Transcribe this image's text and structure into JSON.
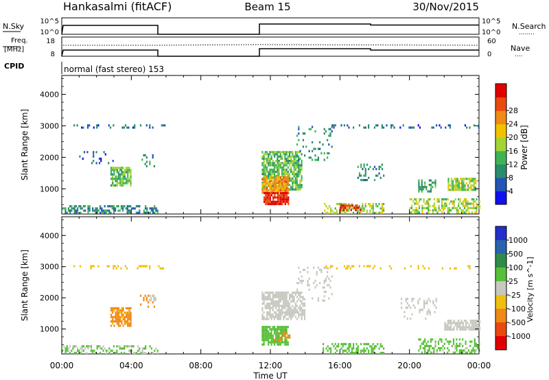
{
  "header": {
    "site": "Hankasalmi (fitACF)",
    "beam": "Beam 15",
    "date": "30/Nov/2015"
  },
  "panels": {
    "nsky": {
      "label": "N.Sky",
      "ticks_left": [
        "10^5",
        "10^0"
      ],
      "ticks_right": [
        "10^5",
        "10^0"
      ],
      "right_label": "N.Search",
      "right_marker": "........"
    },
    "freq": {
      "label_line1": "Freq.",
      "label_line2": "[MHz]",
      "ticks_left": [
        "18",
        "8"
      ],
      "ticks_right": [
        "60",
        "0"
      ],
      "right_label": "Nave",
      "right_marker": "...."
    },
    "cpid": {
      "label": "CPID",
      "value": "normal (fast stereo) 153"
    }
  },
  "chart_data": [
    {
      "type": "heatmap",
      "name": "power",
      "ylabel": "Slant Range [km]",
      "xlabel": "Time UT",
      "xlim": [
        0,
        24
      ],
      "ylim": [
        200,
        4600
      ],
      "yticks": [
        "1000",
        "2000",
        "3000",
        "4000"
      ],
      "xticks": [
        "00:00",
        "04:00",
        "08:00",
        "12:00",
        "16:00",
        "20:00",
        "00:00"
      ],
      "colorbar": {
        "label": "Power [dB]",
        "ticks": [
          "4",
          "8",
          "12",
          "16",
          "20",
          "24",
          "28"
        ],
        "colors": [
          "#1010ee",
          "#2255b5",
          "#2b8c6c",
          "#3fb455",
          "#a4d434",
          "#f2c200",
          "#f08a16",
          "#e84a10",
          "#e00000"
        ]
      },
      "regions": [
        {
          "t": [
            0.0,
            5.5
          ],
          "r": [
            250,
            480
          ],
          "value": 8,
          "density": 0.55
        },
        {
          "t": [
            2.8,
            4.0
          ],
          "r": [
            1100,
            1700
          ],
          "value": 12,
          "density": 0.8
        },
        {
          "t": [
            4.5,
            5.3
          ],
          "r": [
            1700,
            2100
          ],
          "value": 8,
          "density": 0.25
        },
        {
          "t": [
            1.0,
            3.0
          ],
          "r": [
            1800,
            2200
          ],
          "value": 6,
          "density": 0.1
        },
        {
          "t": [
            0.5,
            6.0
          ],
          "r": [
            2950,
            3050
          ],
          "value": 6,
          "density": 0.25
        },
        {
          "t": [
            11.5,
            13.8
          ],
          "r": [
            1000,
            2200
          ],
          "value": 12,
          "density": 0.75
        },
        {
          "t": [
            11.5,
            13.0
          ],
          "r": [
            900,
            1400
          ],
          "value": 20,
          "density": 0.85
        },
        {
          "t": [
            11.6,
            13.0
          ],
          "r": [
            500,
            900
          ],
          "value": 26,
          "density": 0.9
        },
        {
          "t": [
            13.5,
            15.5
          ],
          "r": [
            1900,
            3000
          ],
          "value": 8,
          "density": 0.15
        },
        {
          "t": [
            15.0,
            18.5
          ],
          "r": [
            250,
            550
          ],
          "value": 14,
          "density": 0.5
        },
        {
          "t": [
            16.0,
            17.2
          ],
          "r": [
            300,
            500
          ],
          "value": 26,
          "density": 0.6
        },
        {
          "t": [
            17.0,
            18.5
          ],
          "r": [
            1300,
            1800
          ],
          "value": 8,
          "density": 0.25
        },
        {
          "t": [
            20.0,
            24.0
          ],
          "r": [
            250,
            700
          ],
          "value": 14,
          "density": 0.5
        },
        {
          "t": [
            20.5,
            21.5
          ],
          "r": [
            900,
            1300
          ],
          "value": 10,
          "density": 0.4
        },
        {
          "t": [
            22.2,
            23.8
          ],
          "r": [
            950,
            1350
          ],
          "value": 14,
          "density": 0.8
        },
        {
          "t": [
            15.0,
            24.0
          ],
          "r": [
            2950,
            3050
          ],
          "value": 6,
          "density": 0.2
        }
      ]
    },
    {
      "type": "heatmap",
      "name": "velocity",
      "ylabel": "Slant Range [km]",
      "xlabel": "Time UT",
      "xlim": [
        0,
        24
      ],
      "ylim": [
        200,
        4600
      ],
      "yticks": [
        "1000",
        "2000",
        "3000",
        "4000"
      ],
      "xticks": [
        "00:00",
        "04:00",
        "08:00",
        "12:00",
        "16:00",
        "20:00",
        "00:00"
      ],
      "colorbar": {
        "label": "Velocity [m s^-1]",
        "ticks": [
          "1000",
          "500",
          "100",
          "25",
          "-25",
          "-100",
          "-500",
          "-1000"
        ],
        "colors": [
          "#2030c8",
          "#2a62b0",
          "#2e8c4a",
          "#58c038",
          "#c8c8c0",
          "#f0c010",
          "#f08a16",
          "#e84a10",
          "#e00000"
        ]
      },
      "regions": [
        {
          "t": [
            0.0,
            5.5
          ],
          "r": [
            250,
            480
          ],
          "value": 30,
          "density": 0.45
        },
        {
          "t": [
            2.8,
            4.0
          ],
          "r": [
            1100,
            1700
          ],
          "value": -150,
          "density": 0.8
        },
        {
          "t": [
            4.5,
            5.3
          ],
          "r": [
            1700,
            2100
          ],
          "value": -300,
          "density": 0.25
        },
        {
          "t": [
            5.0,
            5.4
          ],
          "r": [
            1900,
            2100
          ],
          "value": 0,
          "density": 0.6
        },
        {
          "t": [
            0.5,
            6.0
          ],
          "r": [
            2950,
            3050
          ],
          "value": -60,
          "density": 0.25
        },
        {
          "t": [
            11.5,
            14.0
          ],
          "r": [
            1300,
            2200
          ],
          "value": 0,
          "density": 0.7
        },
        {
          "t": [
            11.5,
            13.0
          ],
          "r": [
            500,
            1100
          ],
          "value": 60,
          "density": 0.8
        },
        {
          "t": [
            12.2,
            13.2
          ],
          "r": [
            650,
            900
          ],
          "value": -300,
          "density": 0.4
        },
        {
          "t": [
            13.5,
            15.5
          ],
          "r": [
            1900,
            3000
          ],
          "value": 0,
          "density": 0.15
        },
        {
          "t": [
            15.0,
            18.5
          ],
          "r": [
            250,
            550
          ],
          "value": 50,
          "density": 0.45
        },
        {
          "t": [
            19.5,
            21.5
          ],
          "r": [
            1300,
            2000
          ],
          "value": 0,
          "density": 0.2
        },
        {
          "t": [
            20.5,
            24.0
          ],
          "r": [
            250,
            700
          ],
          "value": 40,
          "density": 0.45
        },
        {
          "t": [
            22.0,
            24.0
          ],
          "r": [
            950,
            1300
          ],
          "value": 0,
          "density": 0.8
        },
        {
          "t": [
            15.0,
            24.0
          ],
          "r": [
            2950,
            3050
          ],
          "value": -60,
          "density": 0.2
        }
      ]
    }
  ]
}
